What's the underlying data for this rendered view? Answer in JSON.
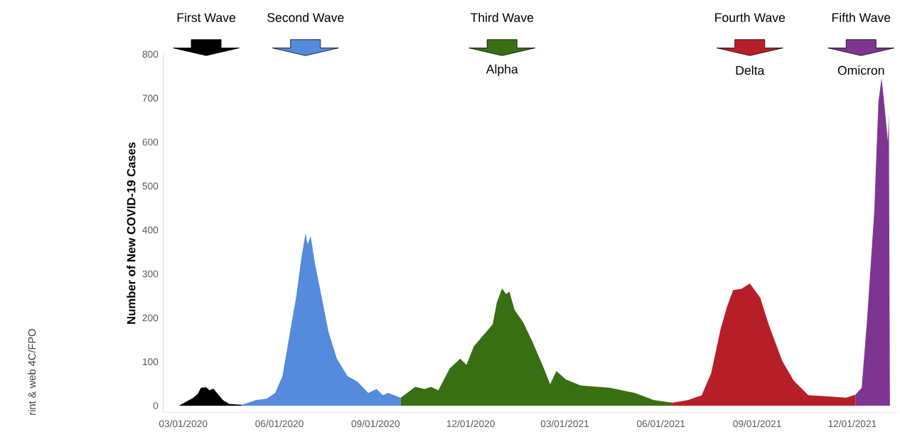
{
  "chart_data": {
    "type": "area",
    "ylabel": "Number of New COVID-19 Cases",
    "xlim": [
      "2020-02-11",
      "2022-01-13"
    ],
    "ylim": [
      -15,
      800
    ],
    "xticks": [
      {
        "value": "2020-03-01",
        "label": "03/01/2020"
      },
      {
        "value": "2020-06-01",
        "label": "06/01/2020"
      },
      {
        "value": "2020-09-01",
        "label": "09/01/2020"
      },
      {
        "value": "2020-12-01",
        "label": "12/01/2020"
      },
      {
        "value": "2021-03-01",
        "label": "03/01/2021"
      },
      {
        "value": "2021-06-01",
        "label": "06/01/2021"
      },
      {
        "value": "2021-09-01",
        "label": "09/01/2021"
      },
      {
        "value": "2021-12-01",
        "label": "12/01/2021"
      }
    ],
    "yticks": [
      0,
      100,
      200,
      300,
      400,
      500,
      600,
      700,
      800
    ],
    "grid": false,
    "series": [
      {
        "color": "#000000",
        "x": [
          "2020-02-16",
          "2020-02-26",
          "2020-03-02",
          "2020-03-10",
          "2020-03-15",
          "2020-03-18",
          "2020-03-23",
          "2020-03-26",
          "2020-03-30",
          "2020-04-03",
          "2020-04-08",
          "2020-04-14",
          "2020-04-26"
        ],
        "values": [
          0,
          0,
          7,
          17,
          27,
          41,
          42,
          35,
          39,
          27,
          13,
          4,
          2
        ]
      },
      {
        "color": "#548bdc",
        "x": [
          "2020-04-26",
          "2020-05-10",
          "2020-05-20",
          "2020-05-28",
          "2020-06-04",
          "2020-06-12",
          "2020-06-17",
          "2020-06-22",
          "2020-06-26",
          "2020-06-28",
          "2020-07-01",
          "2020-07-05",
          "2020-07-12",
          "2020-07-18",
          "2020-07-26",
          "2020-08-05",
          "2020-08-15",
          "2020-08-25",
          "2020-09-02",
          "2020-09-08",
          "2020-09-13",
          "2020-09-25"
        ],
        "values": [
          2,
          13,
          16,
          29,
          68,
          179,
          246,
          335,
          392,
          368,
          386,
          324,
          241,
          168,
          107,
          68,
          54,
          29,
          38,
          24,
          29,
          18
        ]
      },
      {
        "color": "#386f13",
        "x": [
          "2020-09-25",
          "2020-10-09",
          "2020-10-18",
          "2020-10-24",
          "2020-10-31",
          "2020-11-11",
          "2020-11-21",
          "2020-11-27",
          "2020-12-04",
          "2020-12-14",
          "2020-12-22",
          "2020-12-26",
          "2020-12-31",
          "2021-01-04",
          "2021-01-07",
          "2021-01-12",
          "2021-01-20",
          "2021-01-29",
          "2021-02-09",
          "2021-02-15",
          "2021-02-21",
          "2021-03-02",
          "2021-03-16",
          "2021-04-13",
          "2021-05-07",
          "2021-05-25",
          "2021-06-12"
        ],
        "values": [
          18,
          43,
          38,
          43,
          35,
          85,
          107,
          93,
          135,
          163,
          185,
          235,
          267,
          254,
          260,
          218,
          191,
          146,
          85,
          49,
          79,
          60,
          46,
          41,
          29,
          13,
          7
        ]
      },
      {
        "color": "#b71f28",
        "x": [
          "2021-06-12",
          "2021-06-27",
          "2021-07-10",
          "2021-07-19",
          "2021-07-28",
          "2021-08-03",
          "2021-08-09",
          "2021-08-17",
          "2021-08-25",
          "2021-09-04",
          "2021-09-12",
          "2021-09-25",
          "2021-10-06",
          "2021-10-20",
          "2021-11-09",
          "2021-11-25",
          "2021-12-04"
        ],
        "values": [
          7,
          13,
          24,
          74,
          174,
          224,
          263,
          266,
          278,
          246,
          185,
          102,
          57,
          24,
          21,
          18,
          25
        ]
      },
      {
        "color": "#7e3592",
        "x": [
          "2021-12-04",
          "2021-12-10",
          "2021-12-15",
          "2021-12-22",
          "2021-12-26",
          "2021-12-29",
          "2022-01-01",
          "2022-01-04",
          "2022-01-05",
          "2022-01-06"
        ],
        "values": [
          25,
          41,
          191,
          441,
          691,
          746,
          679,
          602,
          663,
          0
        ]
      }
    ],
    "annotations": [
      "First Wave",
      "Second Wave",
      "Third Wave",
      "Fourth Wave",
      "Fifth Wave",
      "Alpha",
      "Delta",
      "Omicron",
      "rint & web 4C/FPO"
    ]
  }
}
